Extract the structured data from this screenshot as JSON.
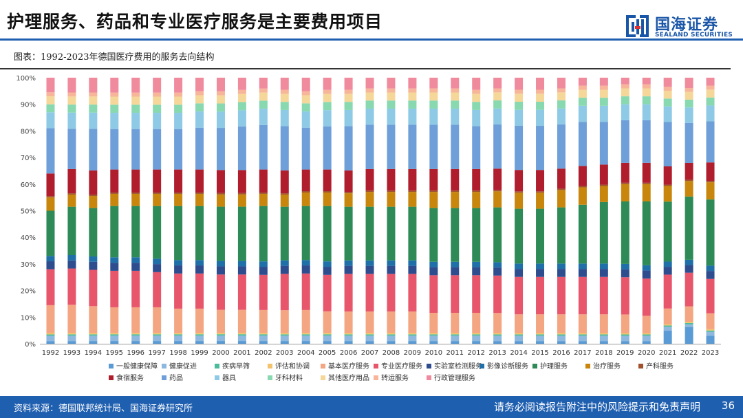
{
  "header": {
    "title": "护理服务、药品和专业医疗服务是主要费用项目",
    "logo_cn": "国海证券",
    "logo_en": "SEALAND SECURITIES"
  },
  "figure_caption": "图表：1992-2023年德国医疗费用的服务去向结构",
  "footer": {
    "source": "资料来源：德国联邦统计局、国海证券研究所",
    "disclaimer": "请务必阅读报告附注中的风险提示和免责声明",
    "page": "36"
  },
  "chart_data": {
    "type": "bar",
    "stacked": true,
    "percent": true,
    "title": "",
    "xlabel": "",
    "ylabel": "",
    "ylim": [
      0,
      100
    ],
    "yticks": [
      "0%",
      "10%",
      "20%",
      "30%",
      "40%",
      "50%",
      "60%",
      "70%",
      "80%",
      "90%",
      "100%"
    ],
    "legend_position": "bottom",
    "categories": [
      "1992",
      "1993",
      "1994",
      "1995",
      "1996",
      "1997",
      "1998",
      "1999",
      "2000",
      "2001",
      "2002",
      "2003",
      "2004",
      "2005",
      "2006",
      "2007",
      "2008",
      "2009",
      "2010",
      "2011",
      "2012",
      "2013",
      "2014",
      "2015",
      "2016",
      "2017",
      "2018",
      "2019",
      "2020",
      "2021",
      "2022",
      "2023"
    ],
    "series": [
      {
        "name": "一般健康保障",
        "color": "#5b9bd5",
        "values": [
          1.0,
          1.0,
          1.0,
          1.0,
          1.0,
          1.0,
          1.0,
          1.0,
          1.0,
          1.0,
          1.0,
          1.0,
          1.0,
          1.0,
          1.0,
          1.0,
          1.0,
          1.0,
          1.0,
          1.0,
          1.0,
          1.0,
          1.0,
          1.0,
          1.0,
          1.0,
          1.0,
          1.0,
          1.0,
          5.0,
          6.5,
          3.0
        ]
      },
      {
        "name": "健康促进",
        "color": "#8fb8de",
        "values": [
          2.0,
          2.0,
          2.0,
          2.0,
          2.0,
          2.0,
          2.0,
          2.0,
          2.0,
          2.0,
          2.0,
          2.0,
          2.0,
          2.0,
          2.0,
          2.0,
          2.0,
          2.0,
          2.0,
          2.0,
          2.0,
          2.0,
          2.0,
          2.0,
          2.0,
          2.0,
          2.0,
          2.0,
          2.0,
          1.5,
          1.0,
          1.5
        ]
      },
      {
        "name": "疾病早筛",
        "color": "#4cbb9b",
        "values": [
          0.5,
          0.5,
          0.5,
          0.5,
          0.5,
          0.5,
          0.5,
          0.5,
          0.5,
          0.5,
          0.5,
          0.5,
          0.5,
          0.5,
          0.5,
          0.5,
          0.5,
          0.5,
          0.5,
          0.5,
          0.5,
          0.5,
          0.5,
          0.5,
          0.5,
          0.5,
          0.5,
          0.5,
          0.5,
          0.5,
          0.5,
          0.5
        ]
      },
      {
        "name": "评估和协调",
        "color": "#f2c36b",
        "values": [
          0.5,
          0.5,
          0.5,
          0.5,
          0.5,
          0.5,
          0.5,
          0.5,
          0.5,
          0.5,
          0.5,
          0.5,
          0.5,
          0.5,
          0.5,
          0.5,
          0.5,
          0.5,
          0.5,
          0.5,
          0.5,
          0.5,
          0.5,
          0.5,
          0.5,
          0.5,
          0.5,
          0.5,
          0.5,
          0.5,
          0.5,
          0.5
        ]
      },
      {
        "name": "基本医疗服务",
        "color": "#f4a582",
        "values": [
          10.5,
          10.5,
          10.0,
          9.5,
          9.5,
          9.5,
          9.0,
          9.0,
          8.5,
          8.5,
          8.5,
          8.5,
          8.5,
          8.0,
          8.0,
          8.0,
          8.0,
          8.0,
          7.5,
          7.5,
          7.5,
          7.5,
          7.0,
          7.0,
          7.0,
          7.0,
          7.0,
          7.0,
          6.5,
          6.0,
          6.0,
          6.0
        ]
      },
      {
        "name": "专业医疗服务",
        "color": "#e8566c",
        "values": [
          13.5,
          13.5,
          13.5,
          13.5,
          13.5,
          13.0,
          13.0,
          13.0,
          13.0,
          13.0,
          13.0,
          13.5,
          13.5,
          13.5,
          14.0,
          14.0,
          14.0,
          14.0,
          14.0,
          14.0,
          14.0,
          14.0,
          14.0,
          14.0,
          14.0,
          14.0,
          14.0,
          14.0,
          14.0,
          13.0,
          13.0,
          13.0
        ]
      },
      {
        "name": "实验室检测服务",
        "color": "#2e4d8f",
        "values": [
          3.0,
          3.0,
          3.0,
          3.0,
          3.0,
          3.0,
          3.0,
          3.0,
          3.0,
          3.0,
          3.0,
          3.0,
          3.0,
          3.0,
          3.0,
          3.0,
          3.0,
          3.0,
          3.0,
          3.0,
          3.0,
          3.0,
          3.0,
          3.0,
          3.0,
          3.0,
          3.0,
          3.0,
          3.0,
          3.0,
          3.0,
          3.0
        ]
      },
      {
        "name": "影像诊断服务",
        "color": "#1f6fa8",
        "values": [
          2.0,
          2.0,
          2.0,
          2.0,
          2.0,
          2.0,
          2.0,
          2.0,
          2.0,
          2.0,
          2.0,
          2.0,
          2.0,
          2.0,
          2.0,
          2.0,
          2.0,
          2.0,
          2.0,
          2.0,
          2.0,
          2.0,
          2.0,
          2.0,
          2.0,
          2.0,
          2.0,
          2.0,
          2.0,
          2.0,
          2.0,
          2.0
        ]
      },
      {
        "name": "护理服务",
        "color": "#2e8b57",
        "values": [
          17.0,
          18.0,
          18.0,
          19.0,
          19.0,
          19.5,
          20.0,
          20.0,
          20.0,
          20.0,
          20.5,
          20.0,
          20.0,
          20.5,
          20.0,
          20.0,
          20.0,
          20.0,
          20.0,
          20.0,
          20.0,
          20.5,
          20.5,
          20.5,
          21.0,
          22.0,
          23.0,
          23.5,
          24.0,
          23.0,
          24.5,
          25.0
        ]
      },
      {
        "name": "治疗服务",
        "color": "#c8860d",
        "values": [
          5.0,
          4.5,
          4.5,
          4.5,
          4.5,
          4.5,
          4.5,
          4.5,
          4.5,
          4.5,
          4.5,
          4.5,
          5.0,
          5.0,
          5.0,
          5.5,
          5.5,
          5.5,
          6.0,
          6.0,
          6.0,
          6.0,
          6.0,
          6.0,
          6.5,
          6.5,
          6.0,
          6.5,
          6.5,
          6.0,
          6.0,
          6.5
        ]
      },
      {
        "name": "产科服务",
        "color": "#a0522d",
        "values": [
          0.5,
          0.5,
          0.5,
          0.5,
          0.5,
          0.5,
          0.5,
          0.5,
          0.5,
          0.5,
          0.5,
          0.5,
          0.5,
          0.5,
          0.5,
          0.5,
          0.5,
          0.5,
          0.5,
          0.5,
          0.5,
          0.5,
          0.5,
          0.5,
          0.5,
          0.5,
          0.5,
          0.5,
          0.5,
          0.5,
          0.5,
          0.5
        ]
      },
      {
        "name": "食宿服务",
        "color": "#b01e2e",
        "values": [
          8.5,
          9.0,
          9.0,
          8.5,
          8.5,
          8.5,
          8.5,
          8.5,
          8.5,
          8.5,
          8.5,
          8.5,
          8.0,
          8.0,
          8.0,
          8.0,
          8.0,
          8.0,
          8.0,
          8.0,
          8.0,
          8.0,
          8.0,
          8.0,
          7.5,
          7.5,
          7.5,
          7.5,
          7.5,
          7.0,
          6.5,
          7.0
        ]
      },
      {
        "name": "药品",
        "color": "#6f9fd8",
        "values": [
          17.0,
          15.0,
          15.5,
          15.0,
          15.0,
          15.0,
          15.0,
          15.5,
          15.5,
          16.0,
          16.5,
          16.5,
          15.5,
          16.0,
          16.5,
          16.5,
          16.5,
          16.5,
          16.5,
          16.5,
          16.0,
          16.5,
          16.5,
          16.5,
          16.5,
          16.5,
          16.0,
          16.0,
          16.0,
          17.0,
          15.5,
          15.5
        ]
      },
      {
        "name": "器具",
        "color": "#8ecae6",
        "values": [
          6.0,
          6.0,
          6.0,
          6.0,
          6.0,
          6.0,
          6.0,
          6.0,
          6.0,
          6.0,
          6.0,
          6.0,
          6.0,
          6.0,
          6.0,
          6.0,
          6.0,
          6.0,
          6.0,
          6.0,
          6.0,
          6.0,
          6.0,
          6.0,
          6.0,
          6.0,
          6.0,
          6.0,
          6.0,
          6.0,
          6.0,
          6.0
        ]
      },
      {
        "name": "牙科材料",
        "color": "#88d8b0",
        "values": [
          3.0,
          3.0,
          3.0,
          3.0,
          3.0,
          3.0,
          3.0,
          3.0,
          3.0,
          3.0,
          3.0,
          3.0,
          3.0,
          3.0,
          3.0,
          3.0,
          3.0,
          3.0,
          3.0,
          3.0,
          3.0,
          3.0,
          3.0,
          3.0,
          3.0,
          3.0,
          3.0,
          3.0,
          3.0,
          3.0,
          3.0,
          3.0
        ]
      },
      {
        "name": "其他医疗用品",
        "color": "#f6d79a",
        "values": [
          3.0,
          3.0,
          3.0,
          3.0,
          3.0,
          3.0,
          3.0,
          3.0,
          3.0,
          3.0,
          3.0,
          3.0,
          3.0,
          3.0,
          3.0,
          3.0,
          3.0,
          3.0,
          3.0,
          3.0,
          3.0,
          3.0,
          3.0,
          3.0,
          3.0,
          3.0,
          3.0,
          3.0,
          3.0,
          3.0,
          3.0,
          3.0
        ]
      },
      {
        "name": "转运服务",
        "color": "#f7b59a",
        "values": [
          1.5,
          1.5,
          1.5,
          1.5,
          1.5,
          1.5,
          1.5,
          1.5,
          1.5,
          1.5,
          1.5,
          1.5,
          1.5,
          1.5,
          1.5,
          1.5,
          1.5,
          1.5,
          1.5,
          1.5,
          1.5,
          1.5,
          1.5,
          1.5,
          1.5,
          1.5,
          1.5,
          1.5,
          1.5,
          1.5,
          1.5,
          1.5
        ]
      },
      {
        "name": "行政管理服务",
        "color": "#f08a9d",
        "values": [
          5.5,
          5.5,
          5.5,
          5.5,
          5.5,
          5.5,
          5.5,
          5.0,
          5.0,
          4.5,
          4.0,
          4.5,
          5.0,
          4.5,
          4.5,
          4.0,
          4.0,
          4.0,
          4.0,
          4.0,
          4.5,
          4.0,
          4.5,
          4.5,
          4.0,
          3.0,
          3.0,
          2.5,
          2.5,
          3.5,
          4.0,
          3.0
        ]
      }
    ]
  }
}
